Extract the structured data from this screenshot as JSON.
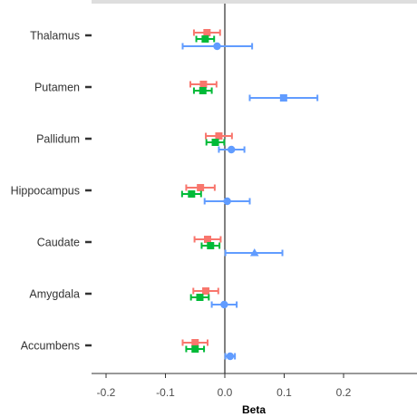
{
  "chart_data": {
    "type": "scatter",
    "subtype": "forest-plot-with-error-bars",
    "xlabel": "Beta",
    "ylabel": "",
    "xlim": [
      -0.225,
      0.325
    ],
    "x_ticks": [
      -0.2,
      -0.1,
      0.0,
      0.1,
      0.2
    ],
    "x_tick_labels": [
      "-0.2",
      "-0.1",
      "0.0",
      "0.1",
      "0.2"
    ],
    "categories": [
      "Thalamus",
      "Putamen",
      "Pallidum",
      "Hippocampus",
      "Caudate",
      "Amygdala",
      "Accumbens"
    ],
    "reference_line_x": 0,
    "grid": false,
    "legend": "none",
    "series": [
      {
        "color": "#f8766d",
        "marker": "square",
        "points": [
          {
            "category": "Thalamus",
            "beta": -0.03,
            "lower": -0.052,
            "upper": -0.008
          },
          {
            "category": "Putamen",
            "beta": -0.036,
            "lower": -0.058,
            "upper": -0.014
          },
          {
            "category": "Pallidum",
            "beta": -0.01,
            "lower": -0.032,
            "upper": 0.012
          },
          {
            "category": "Hippocampus",
            "beta": -0.041,
            "lower": -0.065,
            "upper": -0.017
          },
          {
            "category": "Caudate",
            "beta": -0.029,
            "lower": -0.051,
            "upper": -0.007
          },
          {
            "category": "Amygdala",
            "beta": -0.032,
            "lower": -0.053,
            "upper": -0.011
          },
          {
            "category": "Accumbens",
            "beta": -0.05,
            "lower": -0.071,
            "upper": -0.029
          }
        ]
      },
      {
        "color": "#00ba38",
        "marker": "square",
        "points": [
          {
            "category": "Thalamus",
            "beta": -0.033,
            "lower": -0.048,
            "upper": -0.018
          },
          {
            "category": "Putamen",
            "beta": -0.037,
            "lower": -0.052,
            "upper": -0.022
          },
          {
            "category": "Pallidum",
            "beta": -0.016,
            "lower": -0.031,
            "upper": -0.001
          },
          {
            "category": "Hippocampus",
            "beta": -0.056,
            "lower": -0.072,
            "upper": -0.04
          },
          {
            "category": "Caudate",
            "beta": -0.024,
            "lower": -0.039,
            "upper": -0.009
          },
          {
            "category": "Amygdala",
            "beta": -0.042,
            "lower": -0.057,
            "upper": -0.027
          },
          {
            "category": "Accumbens",
            "beta": -0.05,
            "lower": -0.065,
            "upper": -0.035
          }
        ]
      },
      {
        "color": "#619cff",
        "marker": "mixed",
        "points": [
          {
            "category": "Thalamus",
            "beta": -0.013,
            "lower": -0.071,
            "upper": 0.046,
            "marker": "circle"
          },
          {
            "category": "Putamen",
            "beta": 0.099,
            "lower": 0.042,
            "upper": 0.156,
            "marker": "square"
          },
          {
            "category": "Pallidum",
            "beta": 0.011,
            "lower": -0.01,
            "upper": 0.033,
            "marker": "circle"
          },
          {
            "category": "Hippocampus",
            "beta": 0.004,
            "lower": -0.034,
            "upper": 0.042,
            "marker": "circle"
          },
          {
            "category": "Caudate",
            "beta": 0.05,
            "lower": 0.001,
            "upper": 0.097,
            "marker": "triangle"
          },
          {
            "category": "Amygdala",
            "beta": -0.001,
            "lower": -0.022,
            "upper": 0.02,
            "marker": "circle"
          },
          {
            "category": "Accumbens",
            "beta": 0.009,
            "lower": 0.001,
            "upper": 0.017,
            "marker": "circle"
          }
        ]
      }
    ]
  }
}
